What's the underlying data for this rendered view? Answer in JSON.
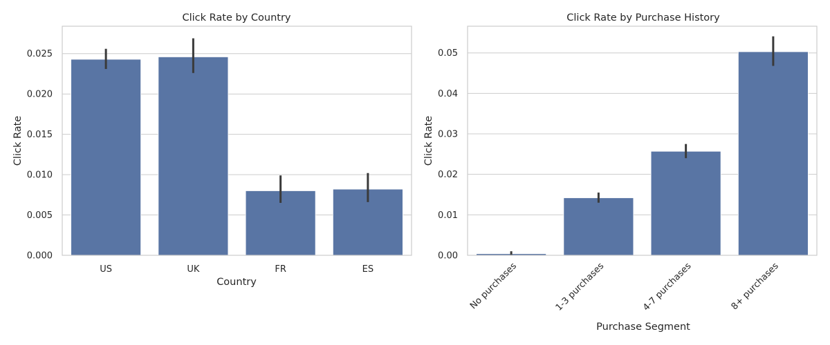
{
  "chart_data": [
    {
      "type": "bar",
      "title": "Click Rate by Country",
      "xlabel": "Country",
      "ylabel": "Click Rate",
      "categories": [
        "US",
        "UK",
        "FR",
        "ES"
      ],
      "values": [
        0.0243,
        0.0246,
        0.008,
        0.0082
      ],
      "error_bars": [
        [
          0.0231,
          0.0256
        ],
        [
          0.0226,
          0.0269
        ],
        [
          0.0065,
          0.0099
        ],
        [
          0.0066,
          0.0102
        ]
      ],
      "ylim": [
        0,
        0.0284
      ],
      "yticks": [
        "0.000",
        "0.005",
        "0.010",
        "0.015",
        "0.020",
        "0.025"
      ],
      "ytick_values": [
        0,
        0.005,
        0.01,
        0.015,
        0.02,
        0.025
      ],
      "grid": "horizontal",
      "bar_color": "#5975a4",
      "error_color": "#3a3a3a"
    },
    {
      "type": "bar",
      "title": "Click Rate by Purchase History",
      "xlabel": "Purchase Segment",
      "ylabel": "Click Rate",
      "categories": [
        "No purchases",
        "1-3 purchases",
        "4-7 purchases",
        "8+ purchases"
      ],
      "values": [
        0.0004,
        0.0142,
        0.0257,
        0.0503
      ],
      "error_bars": [
        [
          0.0001,
          0.001
        ],
        [
          0.013,
          0.0155
        ],
        [
          0.024,
          0.0275
        ],
        [
          0.0468,
          0.0541
        ]
      ],
      "ylim": [
        0,
        0.0566
      ],
      "yticks": [
        "0.00",
        "0.01",
        "0.02",
        "0.03",
        "0.04",
        "0.05"
      ],
      "ytick_values": [
        0,
        0.01,
        0.02,
        0.03,
        0.04,
        0.05
      ],
      "xtick_rotation": 45,
      "grid": "horizontal",
      "bar_color": "#5975a4",
      "error_color": "#3a3a3a"
    }
  ]
}
